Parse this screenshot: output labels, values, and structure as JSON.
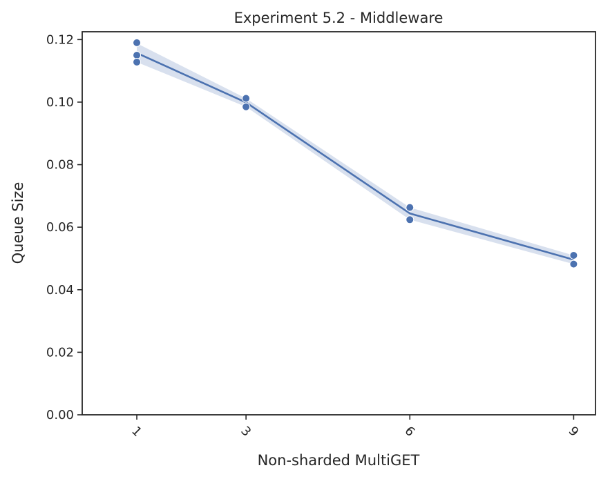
{
  "chart_data": {
    "type": "line",
    "title": "Experiment 5.2 - Middleware",
    "xlabel": "Non-sharded MultiGET",
    "ylabel": "Queue Size",
    "x_ticks": [
      "1",
      "3",
      "6",
      "9"
    ],
    "y_ticks": [
      "0.00",
      "0.02",
      "0.04",
      "0.06",
      "0.08",
      "0.10",
      "0.12"
    ],
    "xlim": [
      0,
      9.4
    ],
    "ylim": [
      0,
      0.1225
    ],
    "grid": false,
    "legend": "none",
    "series": [
      {
        "x": [
          1,
          3,
          6,
          9
        ],
        "y": [
          0.1157,
          0.0999,
          0.0644,
          0.0496
        ],
        "ci_low": [
          0.1128,
          0.0985,
          0.0624,
          0.0482
        ],
        "ci_high": [
          0.1188,
          0.1012,
          0.0663,
          0.051
        ],
        "points": [
          {
            "x": 1,
            "y": 0.119
          },
          {
            "x": 1,
            "y": 0.115
          },
          {
            "x": 1,
            "y": 0.1128
          },
          {
            "x": 3,
            "y": 0.1012
          },
          {
            "x": 3,
            "y": 0.0985
          },
          {
            "x": 6,
            "y": 0.0663
          },
          {
            "x": 6,
            "y": 0.0624
          },
          {
            "x": 9,
            "y": 0.051
          },
          {
            "x": 9,
            "y": 0.0482
          }
        ]
      }
    ],
    "colors": {
      "line": "#4c72b0",
      "band": "#4c72b0",
      "axis": "#262626"
    }
  }
}
